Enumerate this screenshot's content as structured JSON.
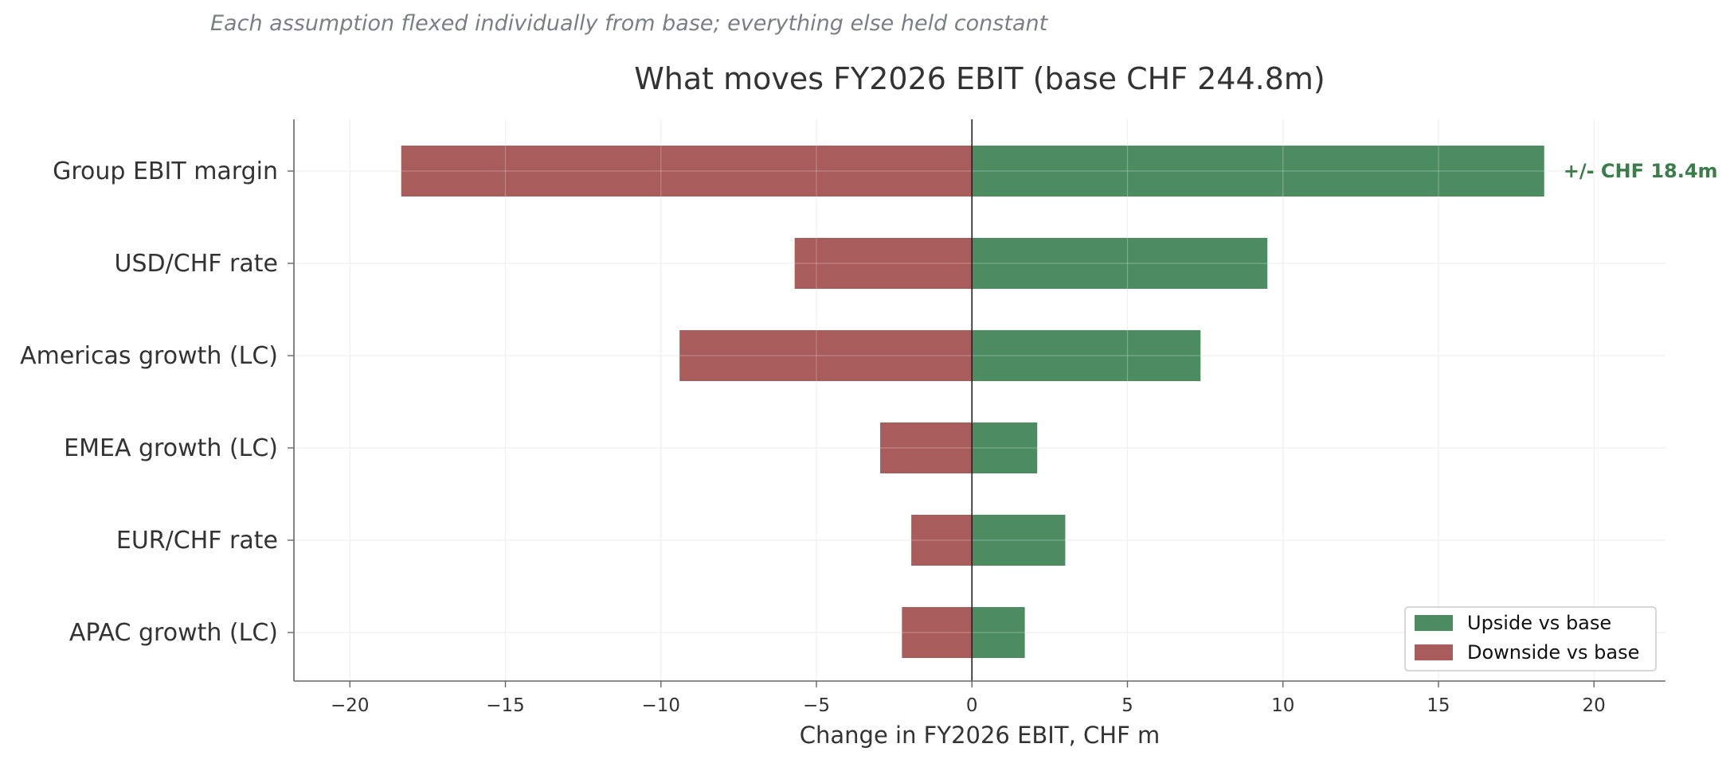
{
  "subtitle": "Each assumption flexed individually from base; everything else held constant",
  "chart_data": {
    "type": "bar",
    "orientation": "horizontal",
    "variant": "tornado",
    "title": "What moves FY2026 EBIT  (base CHF 244.8m)",
    "xlabel": "Change in FY2026 EBIT, CHF m",
    "ylabel": "",
    "xlim": [
      -21.8,
      22.3
    ],
    "xticks": [
      -20,
      -15,
      -10,
      -5,
      0,
      5,
      10,
      15,
      20
    ],
    "xtick_labels": [
      "−20",
      "−15",
      "−10",
      "−5",
      "0",
      "5",
      "10",
      "15",
      "20"
    ],
    "grid": true,
    "legend_position": "bottom-right",
    "categories": [
      "Group EBIT margin",
      "USD/CHF rate",
      "Americas growth (LC)",
      "EMEA growth (LC)",
      "EUR/CHF rate",
      "APAC growth (LC)"
    ],
    "series": [
      {
        "name": "Upside vs base",
        "color": "#4c8c60",
        "values": [
          18.4,
          9.5,
          7.35,
          2.1,
          3.0,
          1.7
        ]
      },
      {
        "name": "Downside vs base",
        "color": "#a85c5c",
        "values": [
          -18.35,
          -5.7,
          -9.4,
          -2.95,
          -1.95,
          -2.25
        ]
      }
    ],
    "annotations": [
      {
        "category": "Group EBIT margin",
        "text": "+/- CHF 18.4m"
      }
    ]
  }
}
